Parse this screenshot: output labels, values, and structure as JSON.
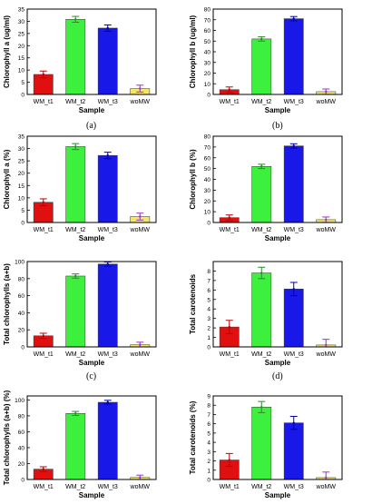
{
  "captions": [
    "(a)",
    "(b)",
    "(c)",
    "(d)"
  ],
  "colors": {
    "WM_t1": "#e01010",
    "WM_t2": "#3ef03e",
    "WM_t3": "#1818e8",
    "woMW": "#f4e66a",
    "err_WM_t1": "#c00000",
    "err_WM_t2": "#2a8a2a",
    "err_WM_t3": "#0000aa",
    "err_woMW": "#9932cc"
  },
  "chart_data": [
    {
      "type": "bar",
      "categories": [
        "WM_t1",
        "WM_t2",
        "WM_t3",
        "woMW"
      ],
      "values": [
        8.2,
        30.8,
        27.2,
        2.4
      ],
      "errors": [
        1.4,
        1.2,
        1.3,
        1.4
      ],
      "xlabel": "Sample",
      "ylabel": "Chlorophyll a (ug/ml)",
      "ylim": [
        0,
        35
      ],
      "yticks": [
        0,
        5,
        10,
        15,
        20,
        25,
        30,
        35
      ],
      "grid": false
    },
    {
      "type": "bar",
      "categories": [
        "WM_t1",
        "WM_t2",
        "WM_t3",
        "woMW"
      ],
      "values": [
        4.5,
        52,
        71,
        2.6
      ],
      "errors": [
        2.5,
        2.0,
        2.0,
        2.5
      ],
      "xlabel": "Sample",
      "ylabel": "Chlorophyll b (ug/ml)",
      "ylim": [
        0,
        80
      ],
      "yticks": [
        0,
        10,
        20,
        30,
        40,
        50,
        60,
        70,
        80
      ],
      "grid": false
    },
    {
      "type": "bar",
      "categories": [
        "WM_t1",
        "WM_t2",
        "WM_t3",
        "woMW"
      ],
      "values": [
        8.2,
        30.8,
        27.2,
        2.4
      ],
      "errors": [
        1.4,
        1.2,
        1.3,
        1.4
      ],
      "xlabel": "Sample",
      "ylabel": "Chlorophyll a (%)",
      "ylim": [
        0,
        35
      ],
      "yticks": [
        0,
        5,
        10,
        15,
        20,
        25,
        30,
        35
      ],
      "grid": false
    },
    {
      "type": "bar",
      "categories": [
        "WM_t1",
        "WM_t2",
        "WM_t3",
        "woMW"
      ],
      "values": [
        4.5,
        52,
        71,
        2.6
      ],
      "errors": [
        2.5,
        2.0,
        2.0,
        2.5
      ],
      "xlabel": "Sample",
      "ylabel": "Chlorophyll b (%)",
      "ylim": [
        0,
        80
      ],
      "yticks": [
        0,
        10,
        20,
        30,
        40,
        50,
        60,
        70,
        80
      ],
      "grid": false
    },
    {
      "type": "bar",
      "categories": [
        "WM_t1",
        "WM_t2",
        "WM_t3",
        "woMW"
      ],
      "values": [
        13,
        83,
        97,
        2.5
      ],
      "errors": [
        3,
        2.5,
        2.5,
        3
      ],
      "xlabel": "Sample",
      "ylabel": "Total chlorophylls (a+b)",
      "ylim": [
        0,
        100
      ],
      "yticks": [
        0,
        20,
        40,
        60,
        80,
        100
      ],
      "grid": false
    },
    {
      "type": "bar",
      "categories": [
        "WM_t1",
        "WM_t2",
        "WM_t3",
        "woMW"
      ],
      "values": [
        2.1,
        7.8,
        6.1,
        0.2
      ],
      "errors": [
        0.7,
        0.6,
        0.7,
        0.6
      ],
      "xlabel": "Sample",
      "ylabel": "Total carotenoids",
      "ylim": [
        0,
        9
      ],
      "yticks": [
        0,
        1,
        2,
        3,
        4,
        5,
        6,
        7,
        8
      ],
      "grid": false
    },
    {
      "type": "bar",
      "categories": [
        "WM_t1",
        "WM_t2",
        "WM_t3",
        "woMW"
      ],
      "values": [
        13,
        83,
        97,
        2.5
      ],
      "errors": [
        3,
        2.5,
        2.5,
        3
      ],
      "xlabel": "Sample",
      "ylabel": "Total chlorophylls (a+b) (%)",
      "ylim": [
        0,
        105
      ],
      "yticks": [
        0,
        20,
        40,
        60,
        80,
        100
      ],
      "grid": false
    },
    {
      "type": "bar",
      "categories": [
        "WM_t1",
        "WM_t2",
        "WM_t3",
        "woMW"
      ],
      "values": [
        2.1,
        7.8,
        6.1,
        0.2
      ],
      "errors": [
        0.7,
        0.6,
        0.7,
        0.6
      ],
      "xlabel": "Sample",
      "ylabel": "Total carotenoids (%)",
      "ylim": [
        0,
        9
      ],
      "yticks": [
        0,
        1,
        2,
        3,
        4,
        5,
        6,
        7,
        8,
        9
      ],
      "grid": false
    }
  ]
}
